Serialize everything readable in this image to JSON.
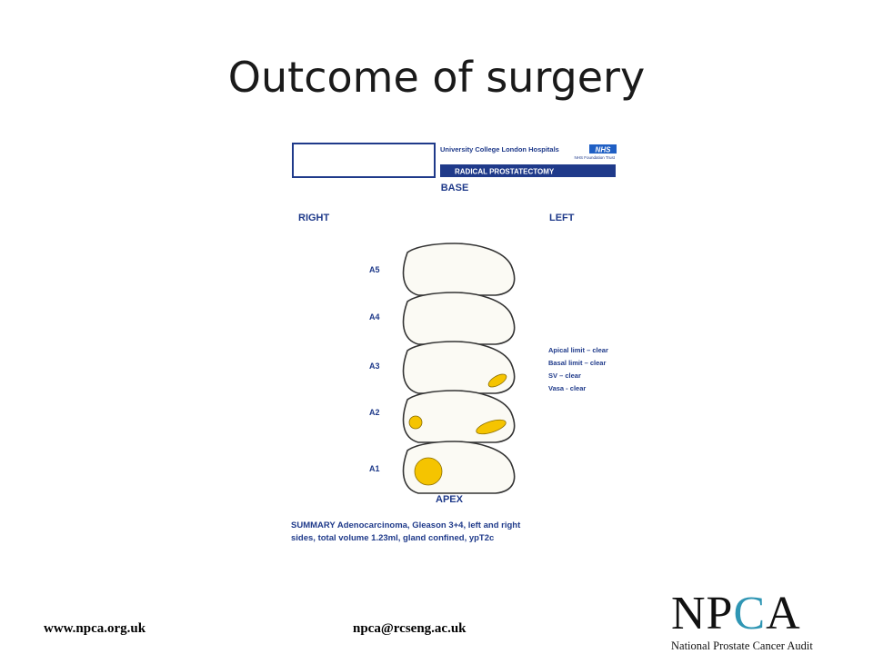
{
  "slide": {
    "title": "Outcome of surgery"
  },
  "diagram": {
    "hospital_name": "University College London Hospitals",
    "nhs_badge": "NHS",
    "trust": "NHS Foundation Trust",
    "procedure": "RADICAL PROSTATECTOMY",
    "base_label": "BASE",
    "right_label": "RIGHT",
    "left_label": "LEFT",
    "apex_label": "APEX",
    "sections": [
      {
        "label": "A5"
      },
      {
        "label": "A4"
      },
      {
        "label": "A3"
      },
      {
        "label": "A2"
      },
      {
        "label": "A1"
      }
    ],
    "margins": [
      "Apical limit – clear",
      "Basal limit – clear",
      "SV – clear",
      "Vasa - clear"
    ],
    "summary_line1": "SUMMARY Adenocarcinoma, Gleason 3+4, left and right",
    "summary_line2": "sides, total volume 1.23ml, gland confined, ypT2c",
    "colors": {
      "navy": "#1f3a8a",
      "tumour": "#f5c400",
      "outline": "#333333"
    }
  },
  "footer": {
    "website": "www.npca.org.uk",
    "email": "npca@rcseng.ac.uk",
    "logo": {
      "part1": "NP",
      "part2": "C",
      "part3": "A",
      "subtitle": "National Prostate Cancer Audit"
    }
  }
}
